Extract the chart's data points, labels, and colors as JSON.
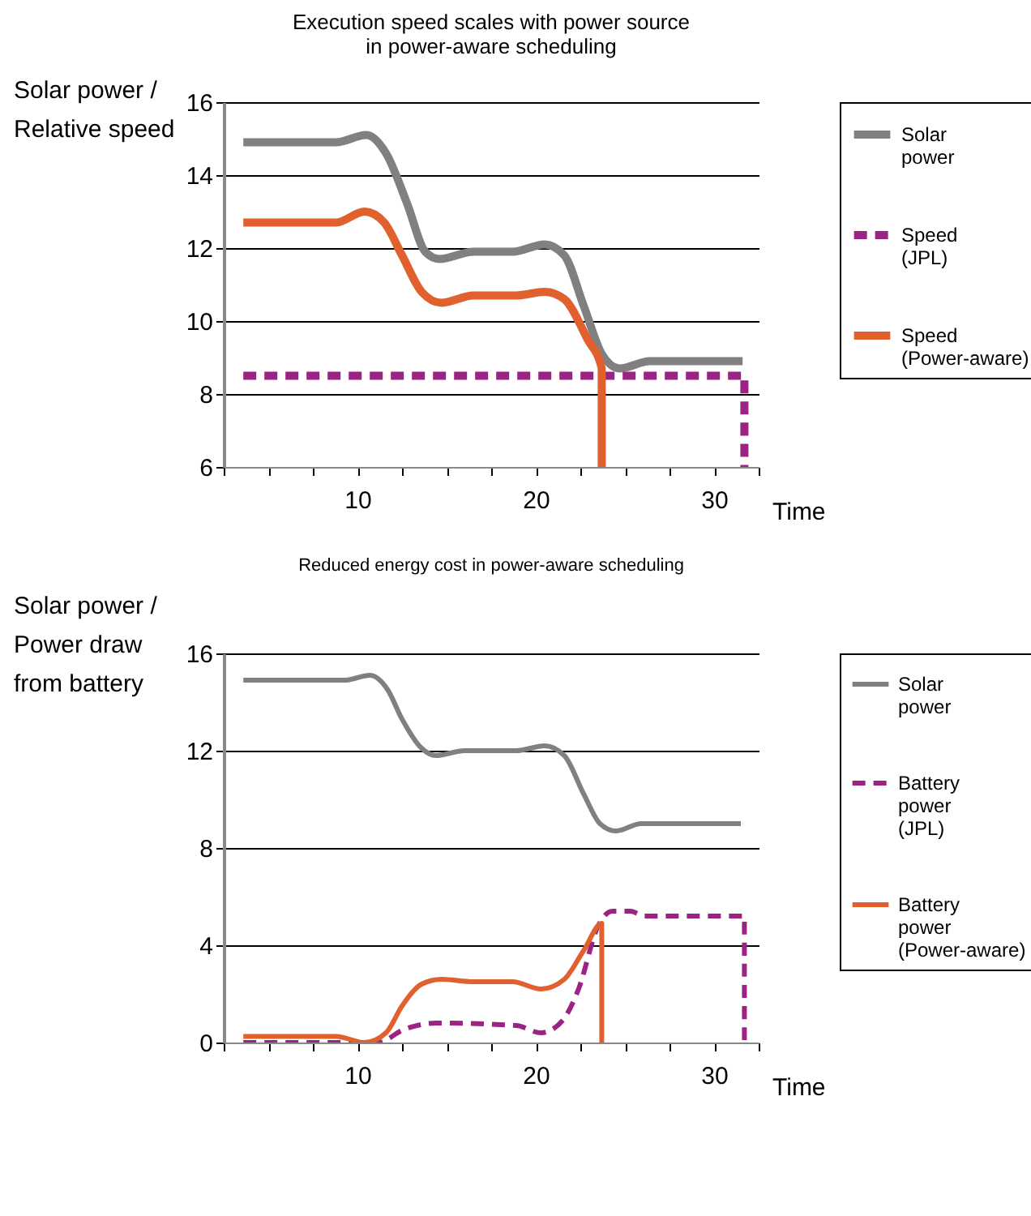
{
  "chart_data": [
    {
      "type": "line",
      "title": "Execution speed scales with power source\nin power-aware scheduling",
      "xlabel": "Time",
      "ylabel": "Solar power /\nRelative speed",
      "xlim": [
        2.5,
        32.5
      ],
      "xticks": [
        {
          "value": 2.5,
          "label": null
        },
        {
          "value": 5,
          "label": null
        },
        {
          "value": 7.5,
          "label": null
        },
        10,
        {
          "value": 12.5,
          "label": null
        },
        {
          "value": 15,
          "label": null
        },
        {
          "value": 17.5,
          "label": null
        },
        20,
        {
          "value": 22.5,
          "label": null
        },
        {
          "value": 25,
          "label": null
        },
        {
          "value": 27.5,
          "label": null
        },
        30,
        {
          "value": 32.5,
          "label": null
        }
      ],
      "ylim": [
        6,
        16
      ],
      "yticks": [
        6,
        8,
        10,
        12,
        14,
        16
      ],
      "grid": "y",
      "legend": "right",
      "series": [
        {
          "name": "Solar power",
          "color": "#808080",
          "line_style": "solid",
          "x": [
            3.6,
            8.8,
            10.5,
            11.6,
            12.8,
            13.8,
            14.6,
            16.5,
            18.7,
            20.5,
            21.6,
            22.7,
            23.7,
            24.7,
            26.4,
            31.6
          ],
          "values": [
            14.9,
            14.9,
            15.1,
            14.6,
            13.2,
            11.9,
            11.7,
            11.9,
            11.9,
            12.1,
            11.8,
            10.4,
            9.1,
            8.7,
            8.9,
            8.9
          ]
        },
        {
          "name": "Speed (JPL)",
          "color": "#9b2383",
          "line_style": "dashed",
          "x": [
            3.6,
            31.7,
            31.7
          ],
          "values": [
            8.5,
            8.5,
            6
          ]
        },
        {
          "name": "Speed (Power-aware)",
          "color": "#e0602e",
          "line_style": "solid",
          "x": [
            3.6,
            8.8,
            10.4,
            11.5,
            12.5,
            13.6,
            14.7,
            16.5,
            18.9,
            20.5,
            21.6,
            22.9,
            23.7,
            23.7
          ],
          "values": [
            12.7,
            12.7,
            13.0,
            12.7,
            11.8,
            10.8,
            10.5,
            10.7,
            10.7,
            10.8,
            10.6,
            9.5,
            8.7,
            6
          ]
        }
      ]
    },
    {
      "type": "line",
      "title": "Reduced energy cost in power-aware scheduling",
      "xlabel": "Time",
      "ylabel": "Solar power /\nPower draw\nfrom battery",
      "xlim": [
        2.5,
        32.5
      ],
      "xticks": [
        {
          "value": 2.5,
          "label": null
        },
        {
          "value": 5,
          "label": null
        },
        {
          "value": 7.5,
          "label": null
        },
        10,
        {
          "value": 12.5,
          "label": null
        },
        {
          "value": 15,
          "label": null
        },
        {
          "value": 17.5,
          "label": null
        },
        20,
        {
          "value": 22.5,
          "label": null
        },
        {
          "value": 25,
          "label": null
        },
        {
          "value": 27.5,
          "label": null
        },
        30,
        {
          "value": 32.5,
          "label": null
        }
      ],
      "ylim": [
        0,
        16
      ],
      "yticks": [
        0,
        4,
        8,
        12,
        16
      ],
      "grid": "y",
      "legend": "right",
      "series": [
        {
          "name": "Solar power",
          "color": "#808080",
          "line_style": "solid",
          "x": [
            3.6,
            9.3,
            10.7,
            11.7,
            12.5,
            13.6,
            14.4,
            16.0,
            18.9,
            20.5,
            21.6,
            22.7,
            23.6,
            24.5,
            25.9,
            31.5
          ],
          "values": [
            14.9,
            14.9,
            15.1,
            14.5,
            13.3,
            12.1,
            11.8,
            12.0,
            12.0,
            12.2,
            11.8,
            10.2,
            9.0,
            8.7,
            9.0,
            9.0
          ]
        },
        {
          "name": "Battery power (JPL)",
          "color": "#9b2383",
          "line_style": "dashed",
          "x": [
            3.6,
            11.2,
            12.5,
            14.4,
            18.9,
            20.3,
            21.5,
            22.4,
            23.5,
            24.3,
            25.3,
            26.1,
            31.7,
            31.7
          ],
          "values": [
            0,
            0,
            0.5,
            0.8,
            0.7,
            0.4,
            0.9,
            2.2,
            4.8,
            5.4,
            5.4,
            5.2,
            5.2,
            0
          ]
        },
        {
          "name": "Battery power (Power-aware)",
          "color": "#e0602e",
          "line_style": "solid",
          "x": [
            3.6,
            8.8,
            10.4,
            11.6,
            12.5,
            13.6,
            14.7,
            16.5,
            18.7,
            20.3,
            21.6,
            22.7,
            23.7,
            23.7
          ],
          "values": [
            0.25,
            0.25,
            0,
            0.4,
            1.5,
            2.4,
            2.6,
            2.5,
            2.5,
            2.2,
            2.6,
            3.8,
            4.9,
            0
          ]
        }
      ]
    }
  ]
}
